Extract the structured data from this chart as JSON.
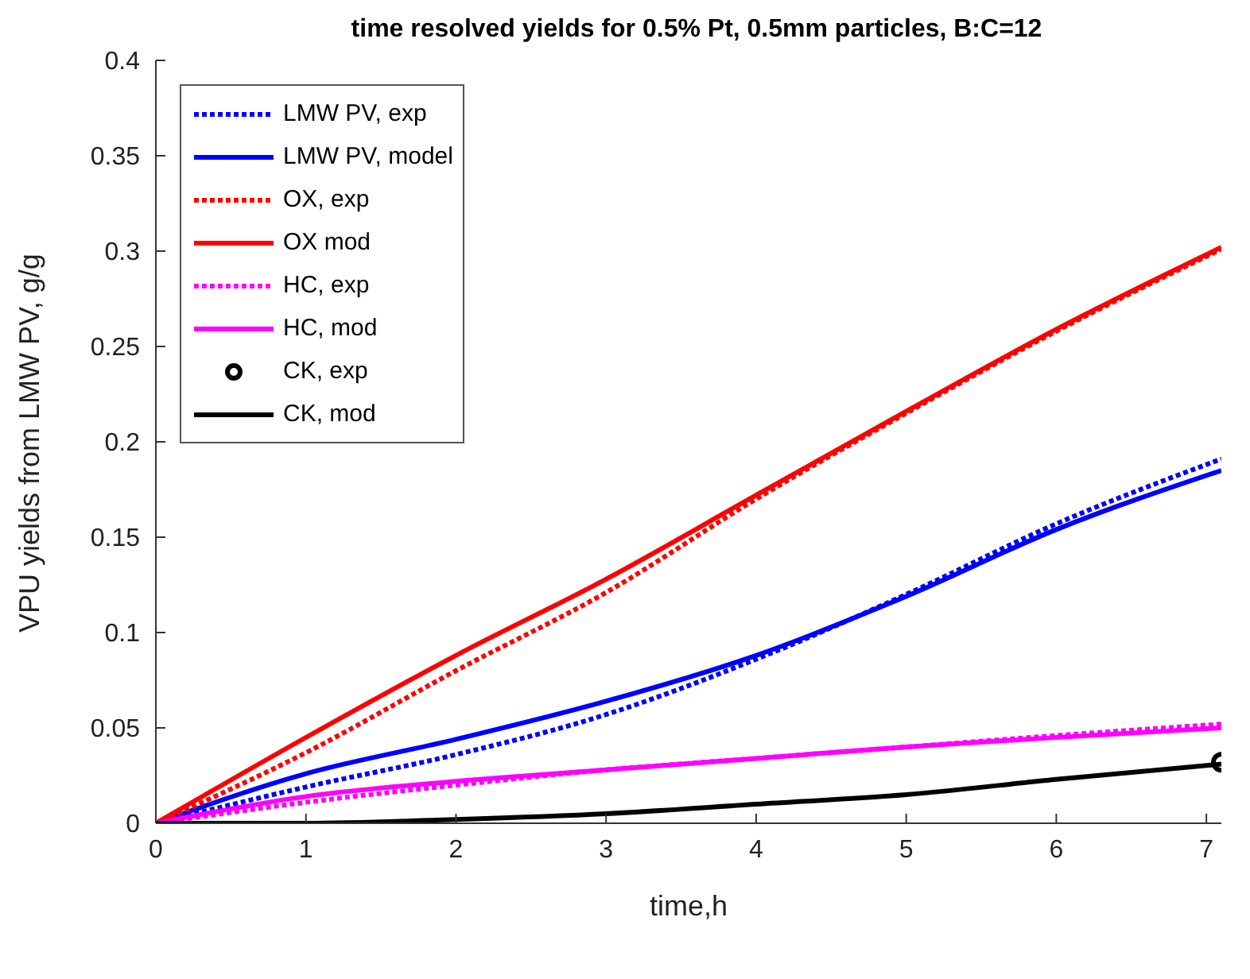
{
  "chart_data": {
    "type": "line",
    "title": "time resolved yields for 0.5% Pt, 0.5mm particles, B:C=12",
    "xlabel": "time,h",
    "ylabel": "VPU yields from LMW PV, g/g",
    "xlim": [
      0,
      7.1
    ],
    "xticks": [
      0,
      1,
      2,
      3,
      4,
      5,
      6,
      7
    ],
    "ylim": [
      0,
      0.4
    ],
    "yticks": [
      0,
      0.05,
      0.1,
      0.15,
      0.2,
      0.25,
      0.3,
      0.35,
      0.4
    ],
    "grid": false,
    "legend": "top left",
    "marker": "none",
    "x": [
      0,
      1,
      2,
      3,
      4,
      5,
      6,
      7.1
    ],
    "series": [
      {
        "name": "LMW PV, exp",
        "color": "#0000ff",
        "line_style": "dotted",
        "values": [
          0,
          0.019,
          0.036,
          0.057,
          0.086,
          0.12,
          0.157,
          0.191
        ]
      },
      {
        "name": "LMW PV, model",
        "color": "#0000ff",
        "line_style": "solid",
        "values": [
          0,
          0.026,
          0.044,
          0.064,
          0.088,
          0.119,
          0.154,
          0.185
        ]
      },
      {
        "name": "OX, exp",
        "color": "#ff0000",
        "line_style": "dotted",
        "values": [
          0,
          0.037,
          0.08,
          0.121,
          0.17,
          0.215,
          0.258,
          0.301
        ]
      },
      {
        "name": "OX mod",
        "color": "#ff0000",
        "line_style": "solid",
        "values": [
          0,
          0.045,
          0.088,
          0.128,
          0.172,
          0.216,
          0.259,
          0.302
        ]
      },
      {
        "name": "HC, exp",
        "color": "#ff00ff",
        "line_style": "dotted",
        "values": [
          0,
          0.011,
          0.02,
          0.028,
          0.034,
          0.04,
          0.046,
          0.052
        ]
      },
      {
        "name": "HC, mod",
        "color": "#ff00ff",
        "line_style": "solid",
        "values": [
          0,
          0.014,
          0.022,
          0.028,
          0.034,
          0.04,
          0.045,
          0.05
        ]
      },
      {
        "name": "CK, exp",
        "color": "#000000",
        "type": "scatter",
        "marker": "circle",
        "x": [
          7.1
        ],
        "values": [
          0.032
        ]
      },
      {
        "name": "CK, mod",
        "color": "#000000",
        "line_style": "solid",
        "values": [
          0,
          0,
          0.002,
          0.005,
          0.01,
          0.015,
          0.023,
          0.031
        ]
      }
    ]
  }
}
